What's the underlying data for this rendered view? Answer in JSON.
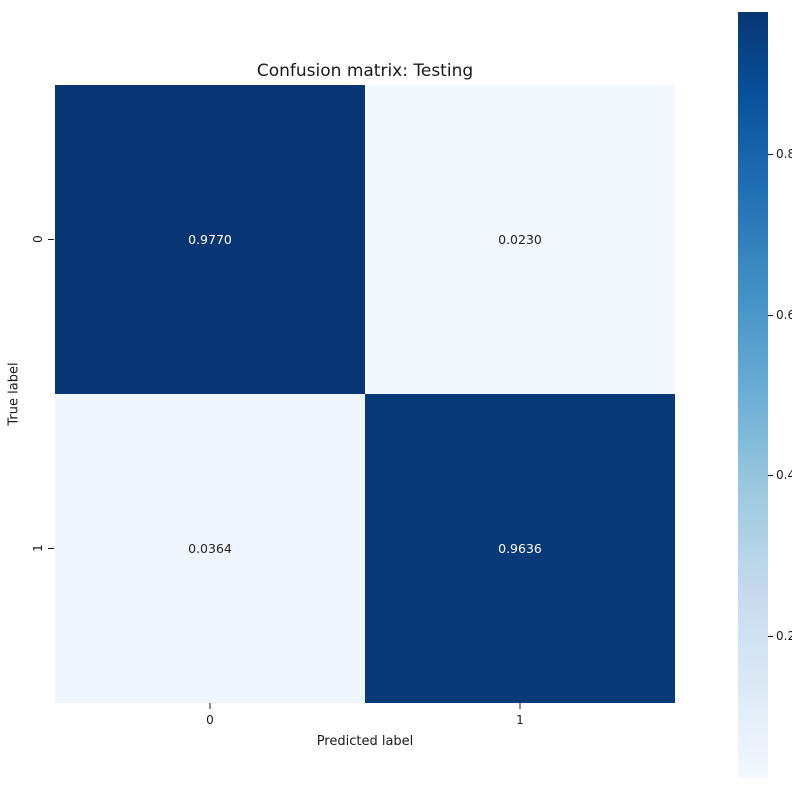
{
  "chart_data": {
    "type": "heatmap",
    "title": "Confusion matrix: Testing",
    "xlabel": "Predicted label",
    "ylabel": "True label",
    "x_tick_labels": [
      "0",
      "1"
    ],
    "y_tick_labels": [
      "0",
      "1"
    ],
    "values": [
      [
        0.977,
        0.023
      ],
      [
        0.0364,
        0.9636
      ]
    ],
    "cell_labels": [
      [
        "0.9770",
        "0.0230"
      ],
      [
        "0.0364",
        "0.9636"
      ]
    ],
    "vmin": 0.023,
    "vmax": 0.977,
    "colormap": "Blues",
    "grid": false,
    "cell_colors": [
      [
        "#083674",
        "#f2f8fd"
      ],
      [
        "#f0f6fd",
        "#083a79"
      ]
    ],
    "cell_text_colors": [
      [
        "#ffffff",
        "#262626"
      ],
      [
        "#262626",
        "#ffffff"
      ]
    ],
    "colorbar": {
      "position": "right",
      "ticks": [
        "0.8",
        "0.6",
        "0.4",
        "0.2"
      ],
      "gradient": [
        "#083674 0%",
        "#08519c 10.7%",
        "#2171b5 23.8%",
        "#4292c6 36.9%",
        "#6baed6 50%",
        "#9ecae1 63.1%",
        "#c6dbef 76.2%",
        "#deebf7 89.3%",
        "#f2f8fd 100%"
      ]
    }
  },
  "colors": {
    "background": "#ffffff",
    "text": "#262626",
    "dark_cell": "#083674",
    "light_cell": "#f2f8fd"
  }
}
